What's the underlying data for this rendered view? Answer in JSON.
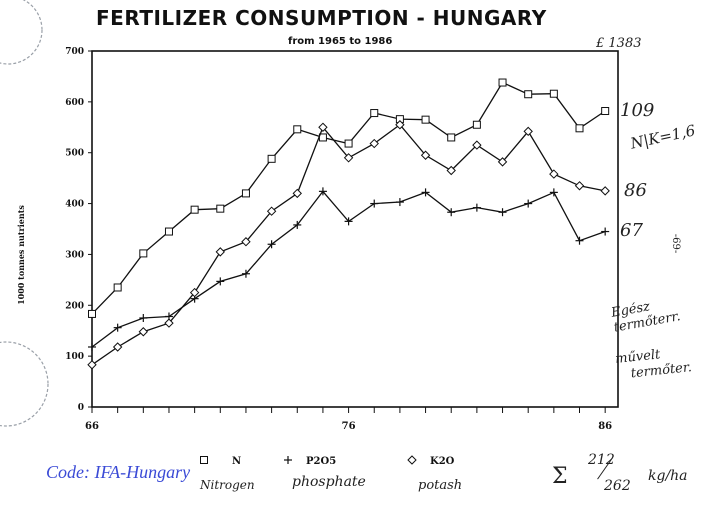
{
  "chart_data": {
    "type": "line",
    "title": "FERTILIZER CONSUMPTION - HUNGARY",
    "subtitle": "from 1965 to 1986",
    "ylabel": "1000 tonnes nutrients",
    "ylim": [
      0,
      700
    ],
    "yticks": [
      "0",
      "100",
      "200",
      "300",
      "400",
      "500",
      "600",
      "700"
    ],
    "xticklabels": [
      {
        "x": 66,
        "label": "66"
      },
      {
        "x": 76,
        "label": "76"
      },
      {
        "x": 86,
        "label": "86"
      }
    ],
    "xlim": [
      66,
      86.5
    ],
    "grid": false,
    "legend_position": "bottom",
    "x": [
      66,
      67,
      68,
      69,
      70,
      71,
      72,
      73,
      74,
      75,
      76,
      77,
      78,
      79,
      80,
      81,
      82,
      83,
      84,
      85,
      86
    ],
    "series": [
      {
        "name": "N",
        "marker": "square",
        "values": [
          183,
          235,
          302,
          345,
          388,
          390,
          420,
          488,
          546,
          530,
          518,
          578,
          566,
          565,
          530,
          555,
          638,
          615,
          616,
          548,
          582
        ]
      },
      {
        "name": "P2O5",
        "marker": "plus",
        "values": [
          118,
          156,
          175,
          178,
          213,
          247,
          262,
          320,
          358,
          424,
          365,
          400,
          403,
          422,
          383,
          392,
          383,
          400,
          422,
          327,
          345
        ]
      },
      {
        "name": "K2O",
        "marker": "diamond",
        "values": [
          83,
          118,
          148,
          165,
          225,
          305,
          325,
          385,
          420,
          550,
          490,
          518,
          555,
          495,
          465,
          515,
          482,
          542,
          458,
          435,
          425
        ]
      }
    ]
  },
  "annotations": {
    "n_end": "109",
    "k2o_end": "86",
    "p2o5_end": "67",
    "ratio_note": "N|K=1,6",
    "top_right_note": "£ 1383",
    "note_1": "Egész termőterr.",
    "note_2_line1": "művelt",
    "note_2_line2": "termőter.",
    "page_mark": "-69-",
    "legend_n_hand": "Nitrogen",
    "legend_p_hand": "phosphate",
    "legend_k_hand": "potash",
    "sigma": "Σ",
    "frac_num": "212",
    "frac_den": "262",
    "unit": "kg/ha",
    "code_label": "Code: IFA-Hungary"
  }
}
